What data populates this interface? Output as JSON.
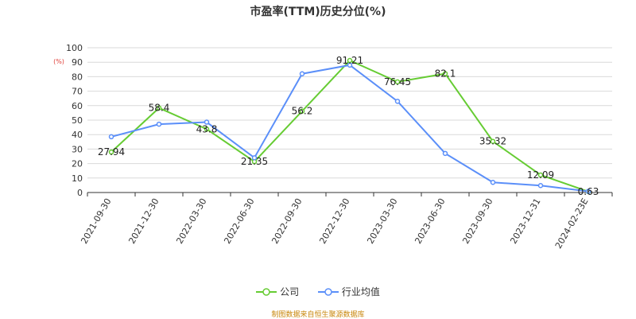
{
  "chart_data": {
    "type": "line",
    "title": "市盈率(TTM)历史分位(%)",
    "ylabel": "(%)",
    "xlabel": "",
    "ylim": [
      0,
      100
    ],
    "yticks": [
      0,
      10,
      20,
      30,
      40,
      50,
      60,
      70,
      80,
      90,
      100
    ],
    "categories": [
      "2021-09-30",
      "2021-12-30",
      "2022-03-30",
      "2022-06-30",
      "2022-09-30",
      "2022-12-30",
      "2023-03-30",
      "2023-06-30",
      "2023-09-30",
      "2023-12-31",
      "2024-02-23E"
    ],
    "series": [
      {
        "name": "公司",
        "color": "#66cc33",
        "values": [
          27.94,
          58.4,
          43.8,
          21.35,
          56.2,
          91.21,
          76.45,
          82.1,
          35.32,
          12.09,
          0.63
        ],
        "labels": [
          "27.94",
          "58.4",
          "43.8",
          "21.35",
          "56.2",
          "91.21",
          "76.45",
          "82.1",
          "35.32",
          "12.09",
          "0.63"
        ]
      },
      {
        "name": "行业均值",
        "color": "#5b8ff9",
        "values": [
          38.5,
          47.2,
          48.6,
          24.0,
          82.0,
          88.0,
          63.0,
          27.0,
          7.0,
          4.8,
          0.8
        ]
      }
    ],
    "grid": true,
    "legend_position": "bottom"
  },
  "source_note": "制图数据来自恒生聚源数据库"
}
